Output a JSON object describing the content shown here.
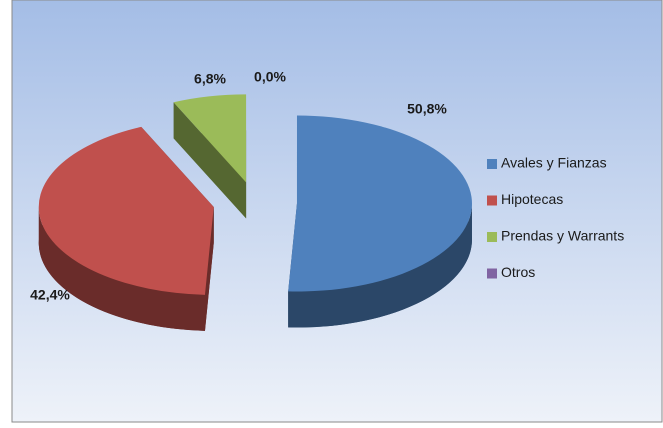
{
  "chart_data": {
    "type": "pie",
    "categories": [
      "Avales y Fianzas",
      "Hipotecas",
      "Prendas y Warrants",
      "Otros"
    ],
    "values": [
      50.8,
      42.4,
      6.8,
      0.0
    ],
    "value_labels": [
      "50,8%",
      "42,4%",
      "6,8%",
      "0,0%"
    ],
    "colors": [
      "#4f81bd",
      "#c0504d",
      "#9bbb59",
      "#8064a2"
    ],
    "legend": "right"
  }
}
